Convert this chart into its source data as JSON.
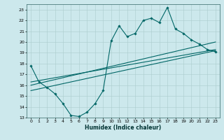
{
  "xlabel": "Humidex (Indice chaleur)",
  "ylabel": "",
  "bg_color": "#cce8ec",
  "grid_color": "#aacccc",
  "line_color": "#006666",
  "xlim": [
    -0.5,
    23.5
  ],
  "ylim": [
    13,
    23.5
  ],
  "yticks": [
    13,
    14,
    15,
    16,
    17,
    18,
    19,
    20,
    21,
    22,
    23
  ],
  "xticks": [
    0,
    1,
    2,
    3,
    4,
    5,
    6,
    7,
    8,
    9,
    10,
    11,
    12,
    13,
    14,
    15,
    16,
    17,
    18,
    19,
    20,
    21,
    22,
    23
  ],
  "main_line_x": [
    0,
    1,
    2,
    3,
    4,
    5,
    6,
    7,
    8,
    9,
    10,
    11,
    12,
    13,
    14,
    15,
    16,
    17,
    18,
    19,
    20,
    21,
    22,
    23
  ],
  "main_line_y": [
    17.8,
    16.3,
    15.8,
    15.2,
    14.3,
    13.2,
    13.1,
    13.5,
    14.3,
    15.5,
    20.1,
    21.5,
    20.5,
    20.8,
    22.0,
    22.2,
    21.8,
    23.2,
    21.2,
    20.8,
    20.2,
    19.8,
    19.3,
    19.1
  ],
  "line2_x": [
    0,
    23
  ],
  "line2_y": [
    16.3,
    19.3
  ],
  "line3_x": [
    0,
    23
  ],
  "line3_y": [
    16.0,
    20.0
  ],
  "line4_x": [
    0,
    23
  ],
  "line4_y": [
    15.5,
    19.2
  ]
}
